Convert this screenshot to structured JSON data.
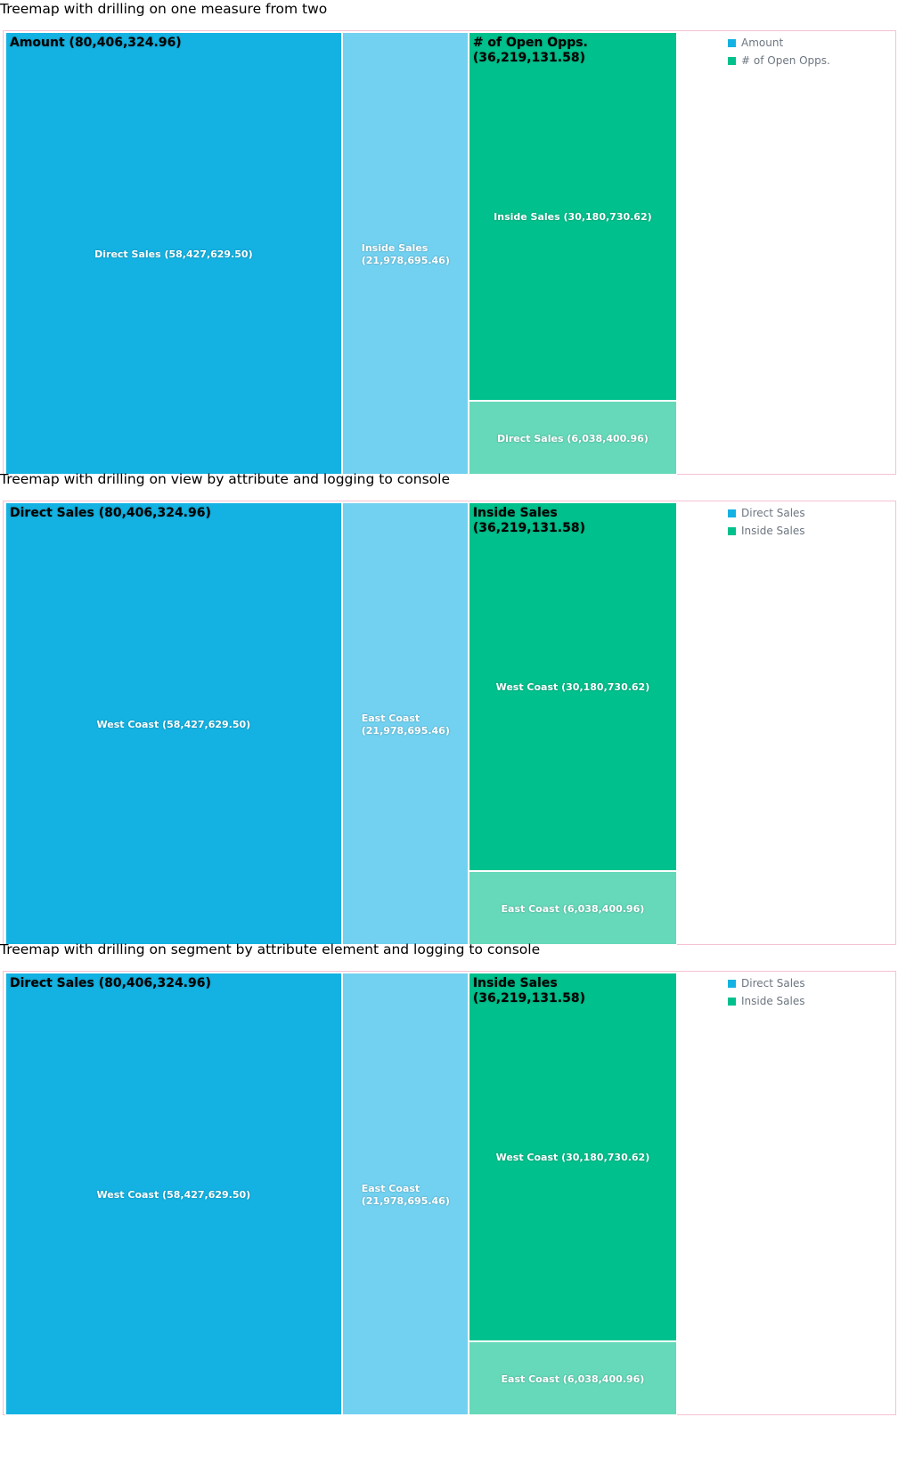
{
  "sections": [
    {
      "title": "Treemap with drilling on one measure from two",
      "chart": {
        "legend": [
          {
            "label": "Amount",
            "color": "#14b2e2"
          },
          {
            "label": "# of Open Opps.",
            "color": "#00c18d"
          }
        ],
        "groups": [
          {
            "label": "Amount (80,406,324.96)",
            "children": [
              {
                "label": "Direct Sales (58,427,629.50)",
                "color": "#14b2e2"
              },
              {
                "label": "Inside Sales (21,978,695.46)",
                "color": "#72d1f0"
              }
            ]
          },
          {
            "label": "# of Open Opps. (36,219,131.58)",
            "children": [
              {
                "label": "Inside Sales (30,180,730.62)",
                "color": "#00c18d"
              },
              {
                "label": "Direct Sales (6,038,400.96)",
                "color": "#66d9ba"
              }
            ]
          }
        ]
      }
    },
    {
      "title": "Treemap with drilling on view by attribute and logging to console",
      "chart": {
        "legend": [
          {
            "label": "Direct Sales",
            "color": "#14b2e2"
          },
          {
            "label": "Inside Sales",
            "color": "#00c18d"
          }
        ],
        "groups": [
          {
            "label": "Direct Sales (80,406,324.96)",
            "children": [
              {
                "label": "West Coast (58,427,629.50)",
                "color": "#14b2e2"
              },
              {
                "label": "East Coast (21,978,695.46)",
                "color": "#72d1f0"
              }
            ]
          },
          {
            "label": "Inside Sales (36,219,131.58)",
            "children": [
              {
                "label": "West Coast (30,180,730.62)",
                "color": "#00c18d"
              },
              {
                "label": "East Coast (6,038,400.96)",
                "color": "#66d9ba"
              }
            ]
          }
        ]
      }
    },
    {
      "title": "Treemap with drilling on segment by attribute element and logging to console",
      "chart": {
        "legend": [
          {
            "label": "Direct Sales",
            "color": "#14b2e2"
          },
          {
            "label": "Inside Sales",
            "color": "#00c18d"
          }
        ],
        "groups": [
          {
            "label": "Direct Sales (80,406,324.96)",
            "children": [
              {
                "label": "West Coast (58,427,629.50)",
                "color": "#14b2e2"
              },
              {
                "label": "East Coast (21,978,695.46)",
                "color": "#72d1f0"
              }
            ]
          },
          {
            "label": "Inside Sales (36,219,131.58)",
            "children": [
              {
                "label": "West Coast (30,180,730.62)",
                "color": "#00c18d"
              },
              {
                "label": "East Coast (6,038,400.96)",
                "color": "#66d9ba"
              }
            ]
          }
        ]
      }
    }
  ],
  "chart_data": [
    {
      "type": "treemap",
      "title": "Treemap with drilling on one measure from two",
      "groups": [
        {
          "name": "Amount",
          "value": 80406324.96,
          "children": [
            {
              "name": "Direct Sales",
              "value": 58427629.5
            },
            {
              "name": "Inside Sales",
              "value": 21978695.46
            }
          ]
        },
        {
          "name": "# of Open Opps.",
          "value": 36219131.58,
          "children": [
            {
              "name": "Inside Sales",
              "value": 30180730.62
            },
            {
              "name": "Direct Sales",
              "value": 6038400.96
            }
          ]
        }
      ],
      "legend": [
        "Amount",
        "# of Open Opps."
      ],
      "legend_position": "top-right"
    },
    {
      "type": "treemap",
      "title": "Treemap with drilling on view by attribute and logging to console",
      "groups": [
        {
          "name": "Direct Sales",
          "value": 80406324.96,
          "children": [
            {
              "name": "West Coast",
              "value": 58427629.5
            },
            {
              "name": "East Coast",
              "value": 21978695.46
            }
          ]
        },
        {
          "name": "Inside Sales",
          "value": 36219131.58,
          "children": [
            {
              "name": "West Coast",
              "value": 30180730.62
            },
            {
              "name": "East Coast",
              "value": 6038400.96
            }
          ]
        }
      ],
      "legend": [
        "Direct Sales",
        "Inside Sales"
      ],
      "legend_position": "top-right"
    },
    {
      "type": "treemap",
      "title": "Treemap with drilling on segment by attribute element and logging to console",
      "groups": [
        {
          "name": "Direct Sales",
          "value": 80406324.96,
          "children": [
            {
              "name": "West Coast",
              "value": 58427629.5
            },
            {
              "name": "East Coast",
              "value": 21978695.46
            }
          ]
        },
        {
          "name": "Inside Sales",
          "value": 36219131.58,
          "children": [
            {
              "name": "West Coast",
              "value": 30180730.62
            },
            {
              "name": "East Coast",
              "value": 6038400.96
            }
          ]
        }
      ],
      "legend": [
        "Direct Sales",
        "Inside Sales"
      ],
      "legend_position": "top-right"
    }
  ]
}
